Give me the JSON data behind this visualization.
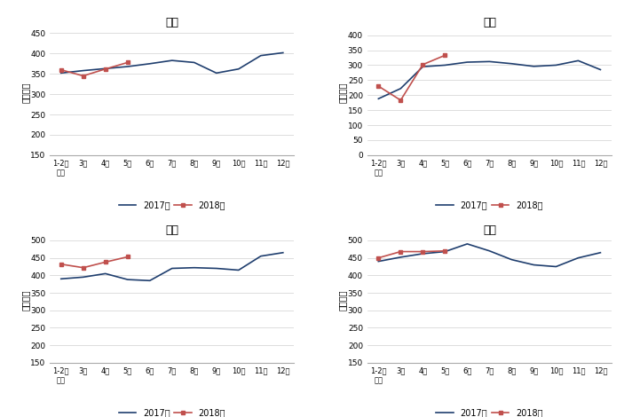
{
  "x_labels": [
    "1-2月\n平均",
    "3月",
    "4月",
    "5月",
    "6月",
    "7月",
    "8月",
    "9月",
    "10月",
    "11月",
    "12月"
  ],
  "charts": [
    {
      "title": "化工",
      "y2017": [
        352,
        358,
        363,
        368,
        375,
        383,
        378,
        352,
        362,
        395,
        402
      ],
      "y2018": [
        360,
        345,
        362,
        378,
        null,
        null,
        null,
        null,
        null,
        null,
        null
      ],
      "ylim": [
        150,
        460
      ],
      "yticks": [
        150,
        200,
        250,
        300,
        350,
        400,
        450
      ],
      "ylabel": "万千瓦时"
    },
    {
      "title": "建材",
      "y2017": [
        188,
        222,
        295,
        300,
        310,
        312,
        305,
        296,
        300,
        315,
        285
      ],
      "y2018": [
        230,
        183,
        302,
        333,
        null,
        null,
        null,
        null,
        null,
        null,
        null
      ],
      "ylim": [
        0,
        420
      ],
      "yticks": [
        0,
        50,
        100,
        150,
        200,
        250,
        300,
        350,
        400
      ],
      "ylabel": "万千瓦时"
    },
    {
      "title": "黑色",
      "y2017": [
        390,
        395,
        405,
        388,
        385,
        420,
        422,
        420,
        415,
        455,
        465
      ],
      "y2018": [
        432,
        422,
        438,
        453,
        null,
        null,
        null,
        null,
        null,
        null,
        null
      ],
      "ylim": [
        150,
        510
      ],
      "yticks": [
        150,
        200,
        250,
        300,
        350,
        400,
        450,
        500
      ],
      "ylabel": "万千瓦时"
    },
    {
      "title": "有色",
      "y2017": [
        440,
        452,
        462,
        468,
        490,
        470,
        445,
        430,
        425,
        450,
        465
      ],
      "y2018": [
        450,
        468,
        468,
        470,
        null,
        null,
        null,
        null,
        null,
        null,
        null
      ],
      "ylim": [
        150,
        510
      ],
      "yticks": [
        150,
        200,
        250,
        300,
        350,
        400,
        450,
        500
      ],
      "ylabel": "万千瓦时"
    }
  ],
  "color_2017": "#1f3e6e",
  "color_2018": "#c0504d",
  "legend_2017": "2017年",
  "legend_2018": "2018年",
  "figsize": [
    7.03,
    4.7
  ],
  "dpi": 100
}
